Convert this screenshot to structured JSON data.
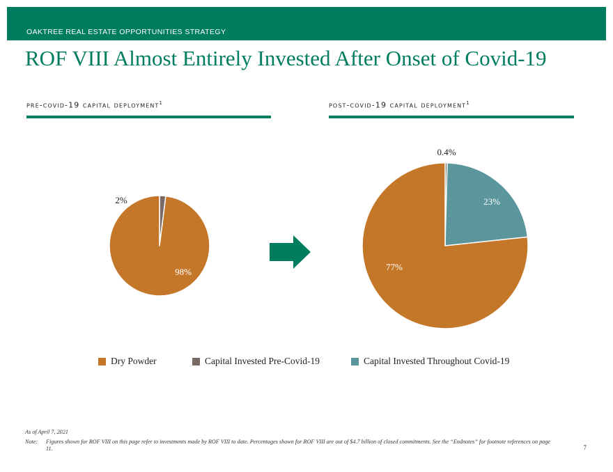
{
  "header": {
    "band_label": "OAKTREE REAL ESTATE OPPORTUNITIES STRATEGY",
    "title": "ROF VIII Almost Entirely Invested After Onset of Covid-19"
  },
  "sections": [
    {
      "heading": "pre-covid-19 capital deployment",
      "footnote_mark": "1"
    },
    {
      "heading": "post-covid-19 capital deployment",
      "footnote_mark": "1"
    }
  ],
  "colors": {
    "brand_green": "#007d5e",
    "dry_powder": "#c47729",
    "capital_invested_pre": "#7a6a66",
    "capital_invested_throughout": "#5a969c"
  },
  "chart_data": [
    {
      "type": "pie",
      "slices": [
        {
          "label": "Capital Invested Pre-Covid-19",
          "value": 2,
          "display": "2%",
          "color": "#7a6a66"
        },
        {
          "label": "Dry Powder",
          "value": 98,
          "display": "98%",
          "color": "#c47729"
        }
      ]
    },
    {
      "type": "pie",
      "slices": [
        {
          "label": "Capital Invested Pre-Covid-19",
          "value": 0.4,
          "display": "0.4%",
          "color": "#7a6a66"
        },
        {
          "label": "Capital Invested Throughout Covid-19",
          "value": 23,
          "display": "23%",
          "color": "#5a969c"
        },
        {
          "label": "Dry Powder",
          "value": 77,
          "display": "77%",
          "color": "#c47729"
        }
      ]
    }
  ],
  "legend": [
    {
      "label": "Dry Powder",
      "color": "#c47729"
    },
    {
      "label": "Capital Invested Pre-Covid-19",
      "color": "#7a6a66"
    },
    {
      "label": "Capital Invested Throughout Covid-19",
      "color": "#5a969c"
    }
  ],
  "footer": {
    "as_of": "As of April 7, 2021",
    "note_label": "Note:",
    "note_text": "Figures shown for ROF VIII  on this page refer to investments made by ROF VIII to date. Percentages shown for ROF VIII are out of $4.7 billion of closed commitments. See the “Endnotes” for footnote references on page 11.",
    "page_number": "7"
  }
}
